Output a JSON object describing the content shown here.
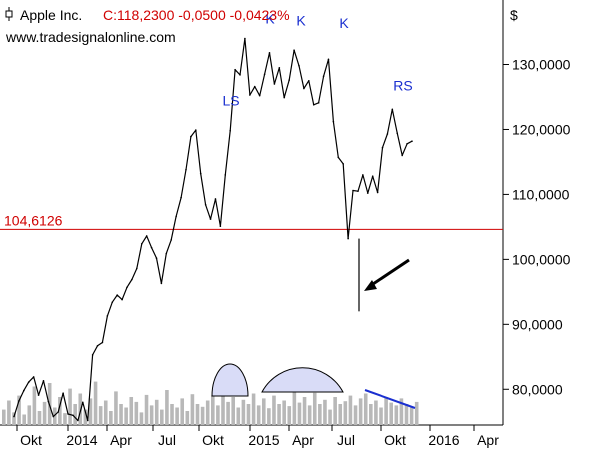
{
  "header": {
    "symbol_icon": "candlestick-icon",
    "name": "Apple Inc.",
    "quote": "C:118,2300 -0,0500 -0,0423%",
    "source": "www.tradesignalonline.com"
  },
  "colors": {
    "background": "#ffffff",
    "price": "#000000",
    "quote": "#d00000",
    "support": "#d00000",
    "pattern_label": "#1a2fd0",
    "volume": "#b8b8b8",
    "cup_fill": "#d9dcf7",
    "trend_line": "#1a2fd0",
    "axis": "#000000"
  },
  "chart_data": {
    "type": "line",
    "title": "Apple Inc.",
    "currency_label": "$",
    "x_tick_labels": [
      "Okt",
      "2014",
      "Apr",
      "Jul",
      "Okt",
      "2015",
      "Apr",
      "Jul",
      "Okt",
      "2016",
      "Apr"
    ],
    "y_tick_labels": [
      "80,0000",
      "90,0000",
      "100,0000",
      "110,0000",
      "120,0000",
      "130,0000"
    ],
    "y_ticks": [
      80,
      90,
      100,
      110,
      120,
      130
    ],
    "ylim": [
      74.5,
      138.7
    ],
    "grid": false,
    "series": [
      {
        "values": [
          75.8,
          78.2,
          79.8,
          81.1,
          81.9,
          79.1,
          81.3,
          78.1,
          75.8,
          76.5,
          79.4,
          76.2,
          76.0,
          75.2,
          78.0,
          75.2,
          85.3,
          86.7,
          87.2,
          91.3,
          93.4,
          94.5,
          93.8,
          95.7,
          96.9,
          98.6,
          102.4,
          103.6,
          101.8,
          100.2,
          96.3,
          100.9,
          103.0,
          106.6,
          109.5,
          113.8,
          118.9,
          119.9,
          113.2,
          108.4,
          106.2,
          109.3,
          105.1,
          113.0,
          119.8,
          129.2,
          128.4,
          134.0,
          125.3,
          126.6,
          125.2,
          128.5,
          131.8,
          127.0,
          129.5,
          124.9,
          127.6,
          132.2,
          129.8,
          126.3,
          127.5,
          123.8,
          124.1,
          128.2,
          130.8,
          121.2,
          115.7,
          114.7,
          103.2,
          110.6,
          110.5,
          113.0,
          110.2,
          112.8,
          110.3,
          117.2,
          119.3,
          123.1,
          119.4,
          116.0,
          117.8,
          118.2
        ],
        "lows": [
          {
            "x": 0.645,
            "y": 92.0
          },
          {
            "x": 0.63,
            "y": 103.2
          }
        ]
      }
    ],
    "support_line": {
      "value": 104.6126,
      "label": "104,6126"
    },
    "pattern_labels": [
      {
        "text": "LS",
        "x": 0.388,
        "y": 123.7
      },
      {
        "text": "K",
        "x": 0.474,
        "y": 136.3
      },
      {
        "text": "K",
        "x": 0.539,
        "y": 136.0
      },
      {
        "text": "K",
        "x": 0.611,
        "y": 135.6
      },
      {
        "text": "RS",
        "x": 0.719,
        "y": 126.0
      }
    ],
    "volume_bars": [
      0.22,
      0.35,
      0.18,
      0.42,
      0.15,
      0.28,
      0.55,
      0.2,
      0.33,
      0.6,
      0.25,
      0.4,
      0.17,
      0.52,
      0.3,
      0.45,
      0.22,
      0.38,
      0.62,
      0.27,
      0.35,
      0.2,
      0.48,
      0.3,
      0.25,
      0.4,
      0.33,
      0.18,
      0.43,
      0.28,
      0.36,
      0.22,
      0.5,
      0.3,
      0.25,
      0.38,
      0.2,
      0.44,
      0.3,
      0.26,
      0.35,
      0.42,
      0.28,
      0.5,
      0.33,
      0.4,
      0.25,
      0.36,
      0.3,
      0.45,
      0.28,
      0.38,
      0.24,
      0.42,
      0.3,
      0.35,
      0.27,
      0.5,
      0.32,
      0.4,
      0.28,
      0.46,
      0.3,
      0.36,
      0.22,
      0.4,
      0.3,
      0.34,
      0.42,
      0.28,
      0.38,
      0.45,
      0.3,
      0.35,
      0.25,
      0.4,
      0.32,
      0.28,
      0.38,
      0.3,
      0.25,
      0.33
    ]
  }
}
